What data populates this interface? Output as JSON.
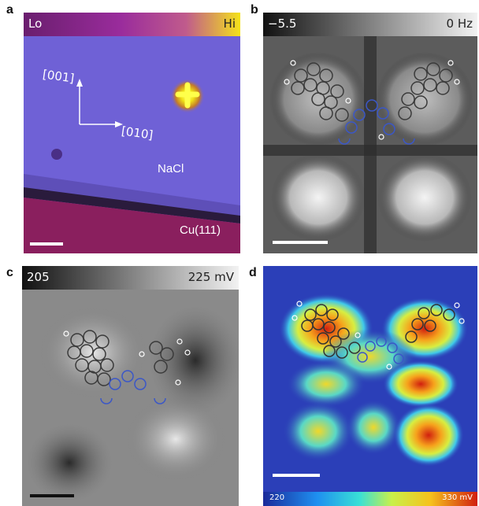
{
  "panels": {
    "a": {
      "label": "a",
      "colorbar": {
        "low": "Lo",
        "high": "Hi"
      },
      "directions": {
        "up": "[001]",
        "right": "[010]"
      },
      "material_top": "NaCl",
      "material_bottom": "Cu(111)"
    },
    "b": {
      "label": "b",
      "colorbar": {
        "low": "−5.5",
        "high": "0 Hz"
      }
    },
    "c": {
      "label": "c",
      "colorbar": {
        "low": "205",
        "high": "225 mV"
      }
    },
    "d": {
      "label": "d",
      "colorbar": {
        "low": "220",
        "high": "330 mV"
      }
    }
  },
  "colors": {
    "lo_purple": "#6a1e6e",
    "hi_yellow": "#f4e21a",
    "nacl_blue": "#6f61d6",
    "cu_magenta": "#8a1f5e",
    "jet_blue": "#2b3fb8",
    "jet_red": "#d11f0f"
  }
}
